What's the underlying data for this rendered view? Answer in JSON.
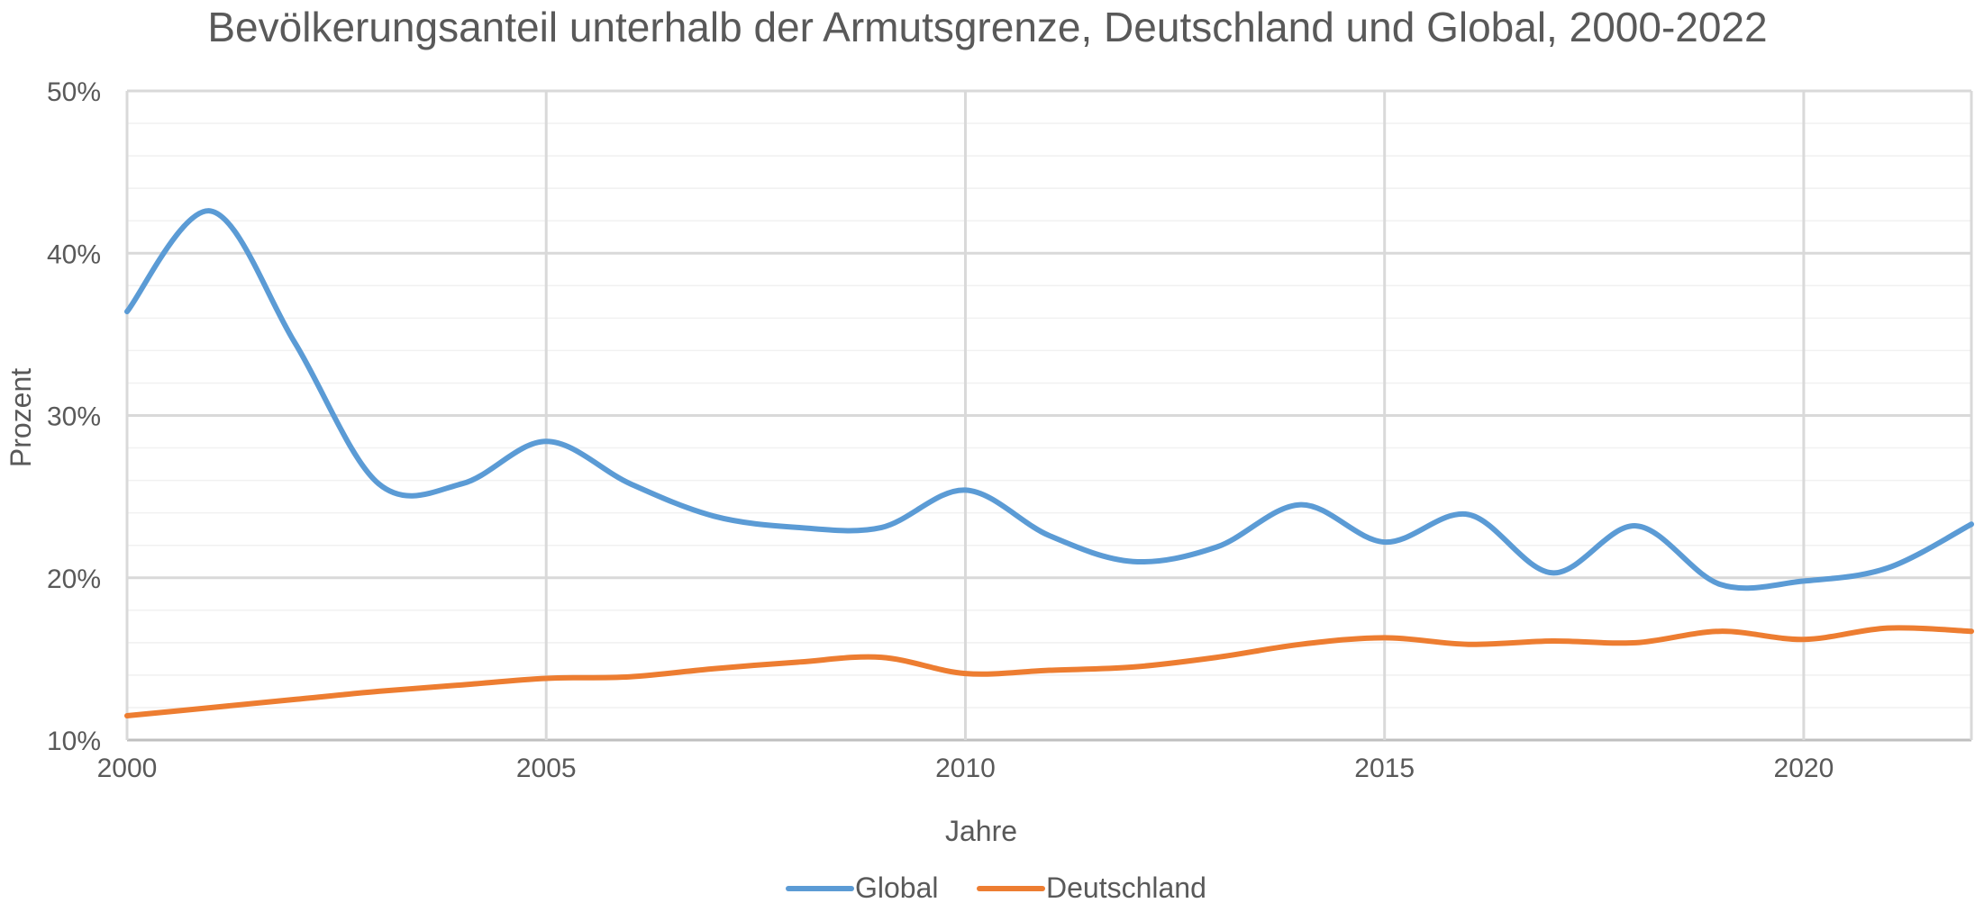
{
  "chart_data": {
    "type": "line",
    "title": "Bevölkerungsanteil unterhalb der Armutsgrenze, Deutschland und Global, 2000-2022",
    "xlabel": "Jahre",
    "ylabel": "Prozent",
    "xlim": [
      2000,
      2022
    ],
    "ylim": [
      10,
      50
    ],
    "x_ticks": [
      2000,
      2005,
      2010,
      2015,
      2020
    ],
    "x_tick_labels": [
      "2000",
      "2005",
      "2010",
      "2015",
      "2020"
    ],
    "y_ticks": [
      10,
      20,
      30,
      40,
      50
    ],
    "y_tick_labels": [
      "10%",
      "20%",
      "30%",
      "40%",
      "50%"
    ],
    "grid": true,
    "legend_position": "bottom",
    "series": [
      {
        "name": "Global",
        "color": "#5B9BD5",
        "x": [
          2000,
          2001,
          2002,
          2003,
          2004,
          2005,
          2006,
          2007,
          2008,
          2009,
          2010,
          2011,
          2012,
          2013,
          2014,
          2015,
          2016,
          2017,
          2018,
          2019,
          2020,
          2021,
          2022
        ],
        "values": [
          36.4,
          42.6,
          34.5,
          25.8,
          25.8,
          28.4,
          25.8,
          23.8,
          23.1,
          23.1,
          25.4,
          22.6,
          21.0,
          21.9,
          24.5,
          22.2,
          23.9,
          20.3,
          23.2,
          19.6,
          19.8,
          20.6,
          23.3
        ]
      },
      {
        "name": "Deutschland",
        "color": "#ED7D31",
        "x": [
          2000,
          2001,
          2002,
          2003,
          2004,
          2005,
          2006,
          2007,
          2008,
          2009,
          2010,
          2011,
          2012,
          2013,
          2014,
          2015,
          2016,
          2017,
          2018,
          2019,
          2020,
          2021,
          2022
        ],
        "values": [
          11.5,
          12.0,
          12.5,
          13.0,
          13.4,
          13.8,
          13.9,
          14.4,
          14.8,
          15.1,
          14.1,
          14.3,
          14.5,
          15.1,
          15.9,
          16.3,
          15.9,
          16.1,
          16.0,
          16.7,
          16.2,
          16.9,
          16.7
        ]
      }
    ]
  }
}
